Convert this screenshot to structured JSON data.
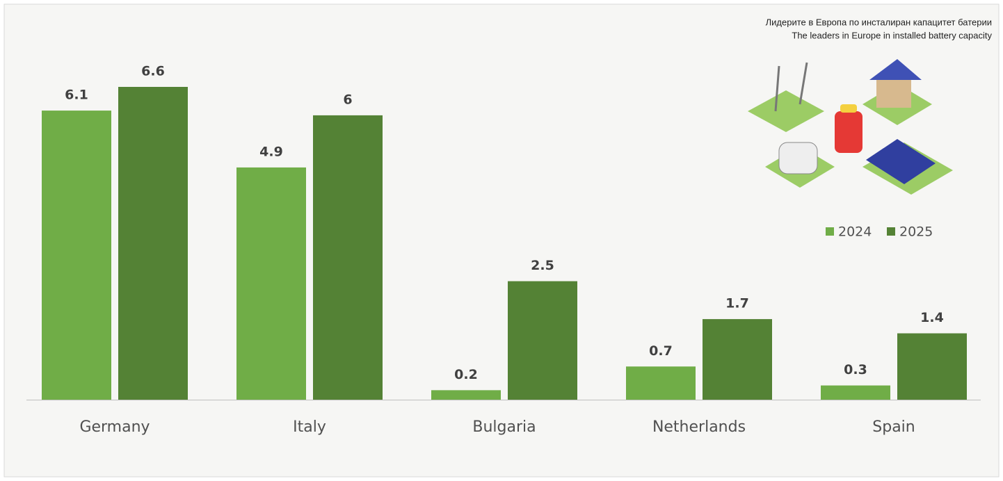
{
  "chart_data": {
    "type": "bar",
    "title": "Лидерите в Европа по инсталиран капацитет батерии",
    "subtitle": "The leaders in Europe in installed battery capacity",
    "categories": [
      "Germany",
      "Italy",
      "Bulgaria",
      "Netherlands",
      "Spain"
    ],
    "series": [
      {
        "name": "2024",
        "color": "#70ad47",
        "values": [
          6.1,
          4.9,
          0.2,
          0.7,
          0.3
        ]
      },
      {
        "name": "2025",
        "color": "#548235",
        "values": [
          6.6,
          6,
          2.5,
          1.7,
          1.4
        ]
      }
    ],
    "legend": "right"
  }
}
